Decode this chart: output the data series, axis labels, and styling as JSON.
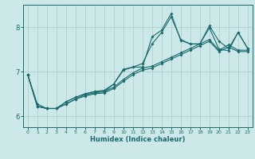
{
  "xlabel": "Humidex (Indice chaleur)",
  "bg_color": "#cce8e8",
  "line_color": "#1a6b6b",
  "grid_color": "#aacccc",
  "xlim": [
    -0.5,
    23.5
  ],
  "ylim": [
    5.75,
    8.5
  ],
  "yticks": [
    6,
    7,
    8
  ],
  "xticks": [
    0,
    1,
    2,
    3,
    4,
    5,
    6,
    7,
    8,
    9,
    10,
    11,
    12,
    13,
    14,
    15,
    16,
    17,
    18,
    19,
    20,
    21,
    22,
    23
  ],
  "line1_x": [
    0,
    1,
    2,
    3,
    4,
    5,
    6,
    7,
    8,
    9,
    10,
    11,
    12,
    13,
    14,
    15,
    16,
    17,
    18,
    19,
    20,
    21,
    22,
    23
  ],
  "line1_y": [
    6.93,
    6.22,
    6.17,
    6.17,
    6.32,
    6.42,
    6.5,
    6.55,
    6.55,
    6.72,
    7.05,
    7.1,
    7.1,
    7.78,
    7.93,
    8.3,
    7.7,
    7.62,
    7.62,
    8.03,
    7.68,
    7.52,
    7.88,
    7.52
  ],
  "line2_x": [
    0,
    1,
    2,
    3,
    4,
    5,
    6,
    7,
    8,
    9,
    10,
    11,
    12,
    13,
    14,
    15,
    16,
    17,
    18,
    19,
    20,
    21,
    22,
    23
  ],
  "line2_y": [
    6.93,
    6.22,
    6.17,
    6.17,
    6.27,
    6.38,
    6.48,
    6.52,
    6.55,
    6.65,
    6.82,
    6.97,
    7.08,
    7.12,
    7.22,
    7.32,
    7.42,
    7.52,
    7.62,
    7.72,
    7.48,
    7.6,
    7.48,
    7.48
  ],
  "line3_x": [
    0,
    1,
    2,
    3,
    4,
    5,
    6,
    7,
    8,
    9,
    10,
    11,
    12,
    13,
    14,
    15,
    16,
    17,
    18,
    19,
    20,
    21,
    22,
    23
  ],
  "line3_y": [
    6.93,
    6.27,
    6.17,
    6.17,
    6.32,
    6.42,
    6.5,
    6.55,
    6.58,
    6.72,
    7.03,
    7.1,
    7.18,
    7.62,
    7.88,
    8.23,
    7.72,
    7.62,
    7.62,
    7.98,
    7.5,
    7.47,
    7.88,
    7.52
  ],
  "line4_x": [
    0,
    1,
    2,
    3,
    4,
    5,
    6,
    7,
    8,
    9,
    10,
    11,
    12,
    13,
    14,
    15,
    16,
    17,
    18,
    19,
    20,
    21,
    22,
    23
  ],
  "line4_y": [
    6.93,
    6.22,
    6.17,
    6.17,
    6.27,
    6.38,
    6.45,
    6.5,
    6.52,
    6.62,
    6.78,
    6.93,
    7.03,
    7.08,
    7.18,
    7.28,
    7.38,
    7.48,
    7.58,
    7.68,
    7.45,
    7.55,
    7.45,
    7.45
  ]
}
